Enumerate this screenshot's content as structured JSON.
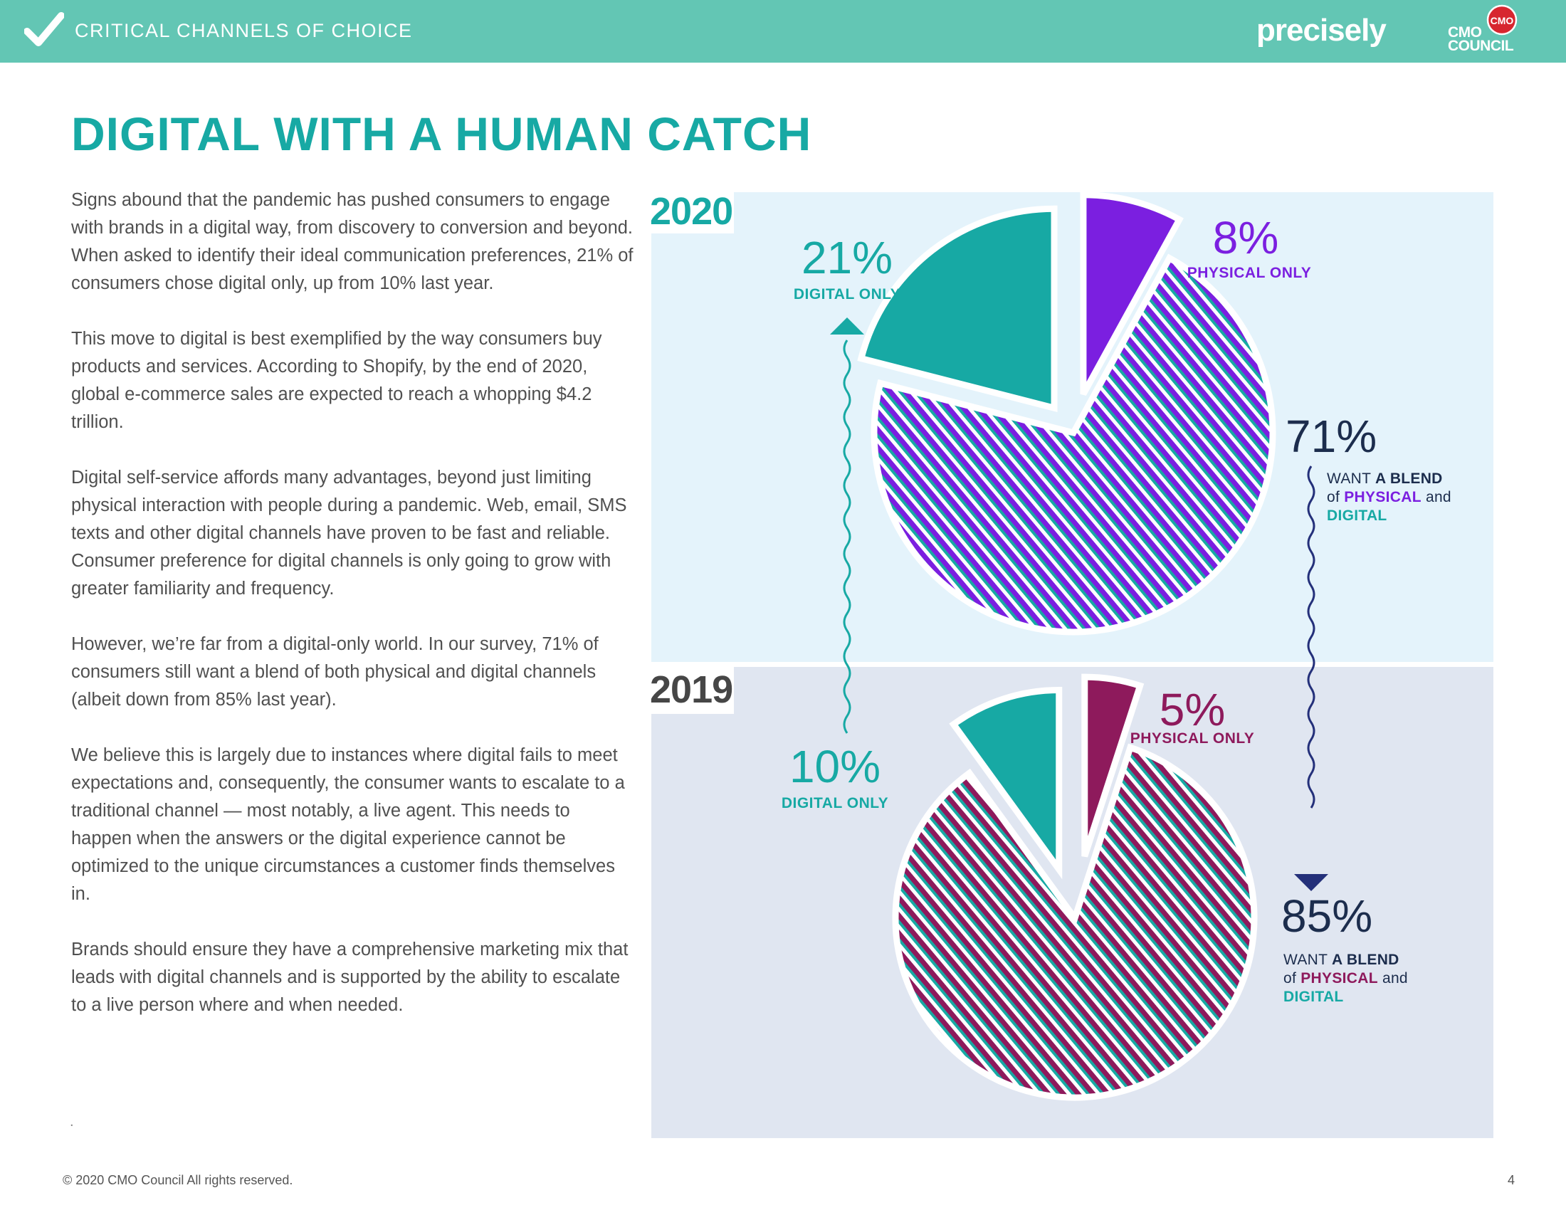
{
  "header": {
    "section_title": "CRITICAL CHANNELS OF CHOICE",
    "brand_logo_text": "precisely",
    "partner_logo_text": "CMO COUNCIL",
    "partner_seal_text": "CMO"
  },
  "page_title": "DIGITAL WITH A HUMAN CATCH",
  "body": {
    "paragraphs": [
      "Signs abound that the pandemic has pushed consumers to engage with brands in a digital way, from discovery to conversion and beyond. When asked to identify their ideal communication preferences, 21% of consumers chose digital only, up from 10% last year.",
      "This move to digital is best exemplified by the way consumers buy products and services. According to Shopify, by the end of 2020, global e-commerce sales are expected to reach a whopping $4.2 trillion.",
      "Digital self-service affords many advantages, beyond just limiting physical interaction with people during a pandemic. Web, email, SMS texts and other digital channels have proven to be fast and reliable. Consumer preference for digital channels is only going to grow with greater familiarity and frequency.",
      "However, we’re far from a digital-only world. In our survey, 71% of consumers still want a blend of both physical and digital channels (albeit down from 85% last year).",
      "We believe this is largely due to instances where digital fails to meet expectations and, consequently, the consumer wants to escalate to a traditional channel — most notably, a live agent. This needs to happen when the answers or the digital experience cannot be optimized to the unique circumstances a customer finds themselves in.",
      "Brands should ensure they have a comprehensive marketing mix that leads with digital channels and is supported by the ability to escalate to a live person where and when needed."
    ],
    "stray_mark": "."
  },
  "footer": {
    "copyright": "© 2020 CMO Council  All rights reserved.",
    "page_number": "4"
  },
  "colors": {
    "teal": "#17a9a4",
    "purple": "#7b1fe0",
    "magenta": "#8e1a5c",
    "navy": "#1c2d4d",
    "header_bar": "#63c6b4"
  },
  "chart_data": [
    {
      "type": "pie",
      "title": "2020",
      "categories": [
        "DIGITAL ONLY",
        "PHYSICAL ONLY",
        "WANT A BLEND of PHYSICAL and DIGITAL"
      ],
      "values": [
        21,
        8,
        71
      ],
      "value_labels": [
        "21%",
        "8%",
        "71%"
      ],
      "blend_caption": {
        "line1_pre": "WANT ",
        "line1_bold": "A BLEND",
        "line2_pre": "of ",
        "line2_bold": "PHYSICAL",
        "line2_post": " and",
        "line3_bold": "DIGITAL"
      },
      "colors": [
        "#17a9a4",
        "#7b1fe0",
        "hatched #7b1fe0 / #17a9a4"
      ]
    },
    {
      "type": "pie",
      "title": "2019",
      "categories": [
        "DIGITAL ONLY",
        "PHYSICAL ONLY",
        "WANT A BLEND of PHYSICAL and DIGITAL"
      ],
      "values": [
        10,
        5,
        85
      ],
      "value_labels": [
        "10%",
        "5%",
        "85%"
      ],
      "blend_caption": {
        "line1_pre": "WANT ",
        "line1_bold": "A BLEND",
        "line2_pre": "of ",
        "line2_bold": "PHYSICAL",
        "line2_post": " and",
        "line3_bold": "DIGITAL"
      },
      "colors": [
        "#17a9a4",
        "#8e1a5c",
        "hatched #8e1a5c / #17a9a4"
      ]
    }
  ]
}
